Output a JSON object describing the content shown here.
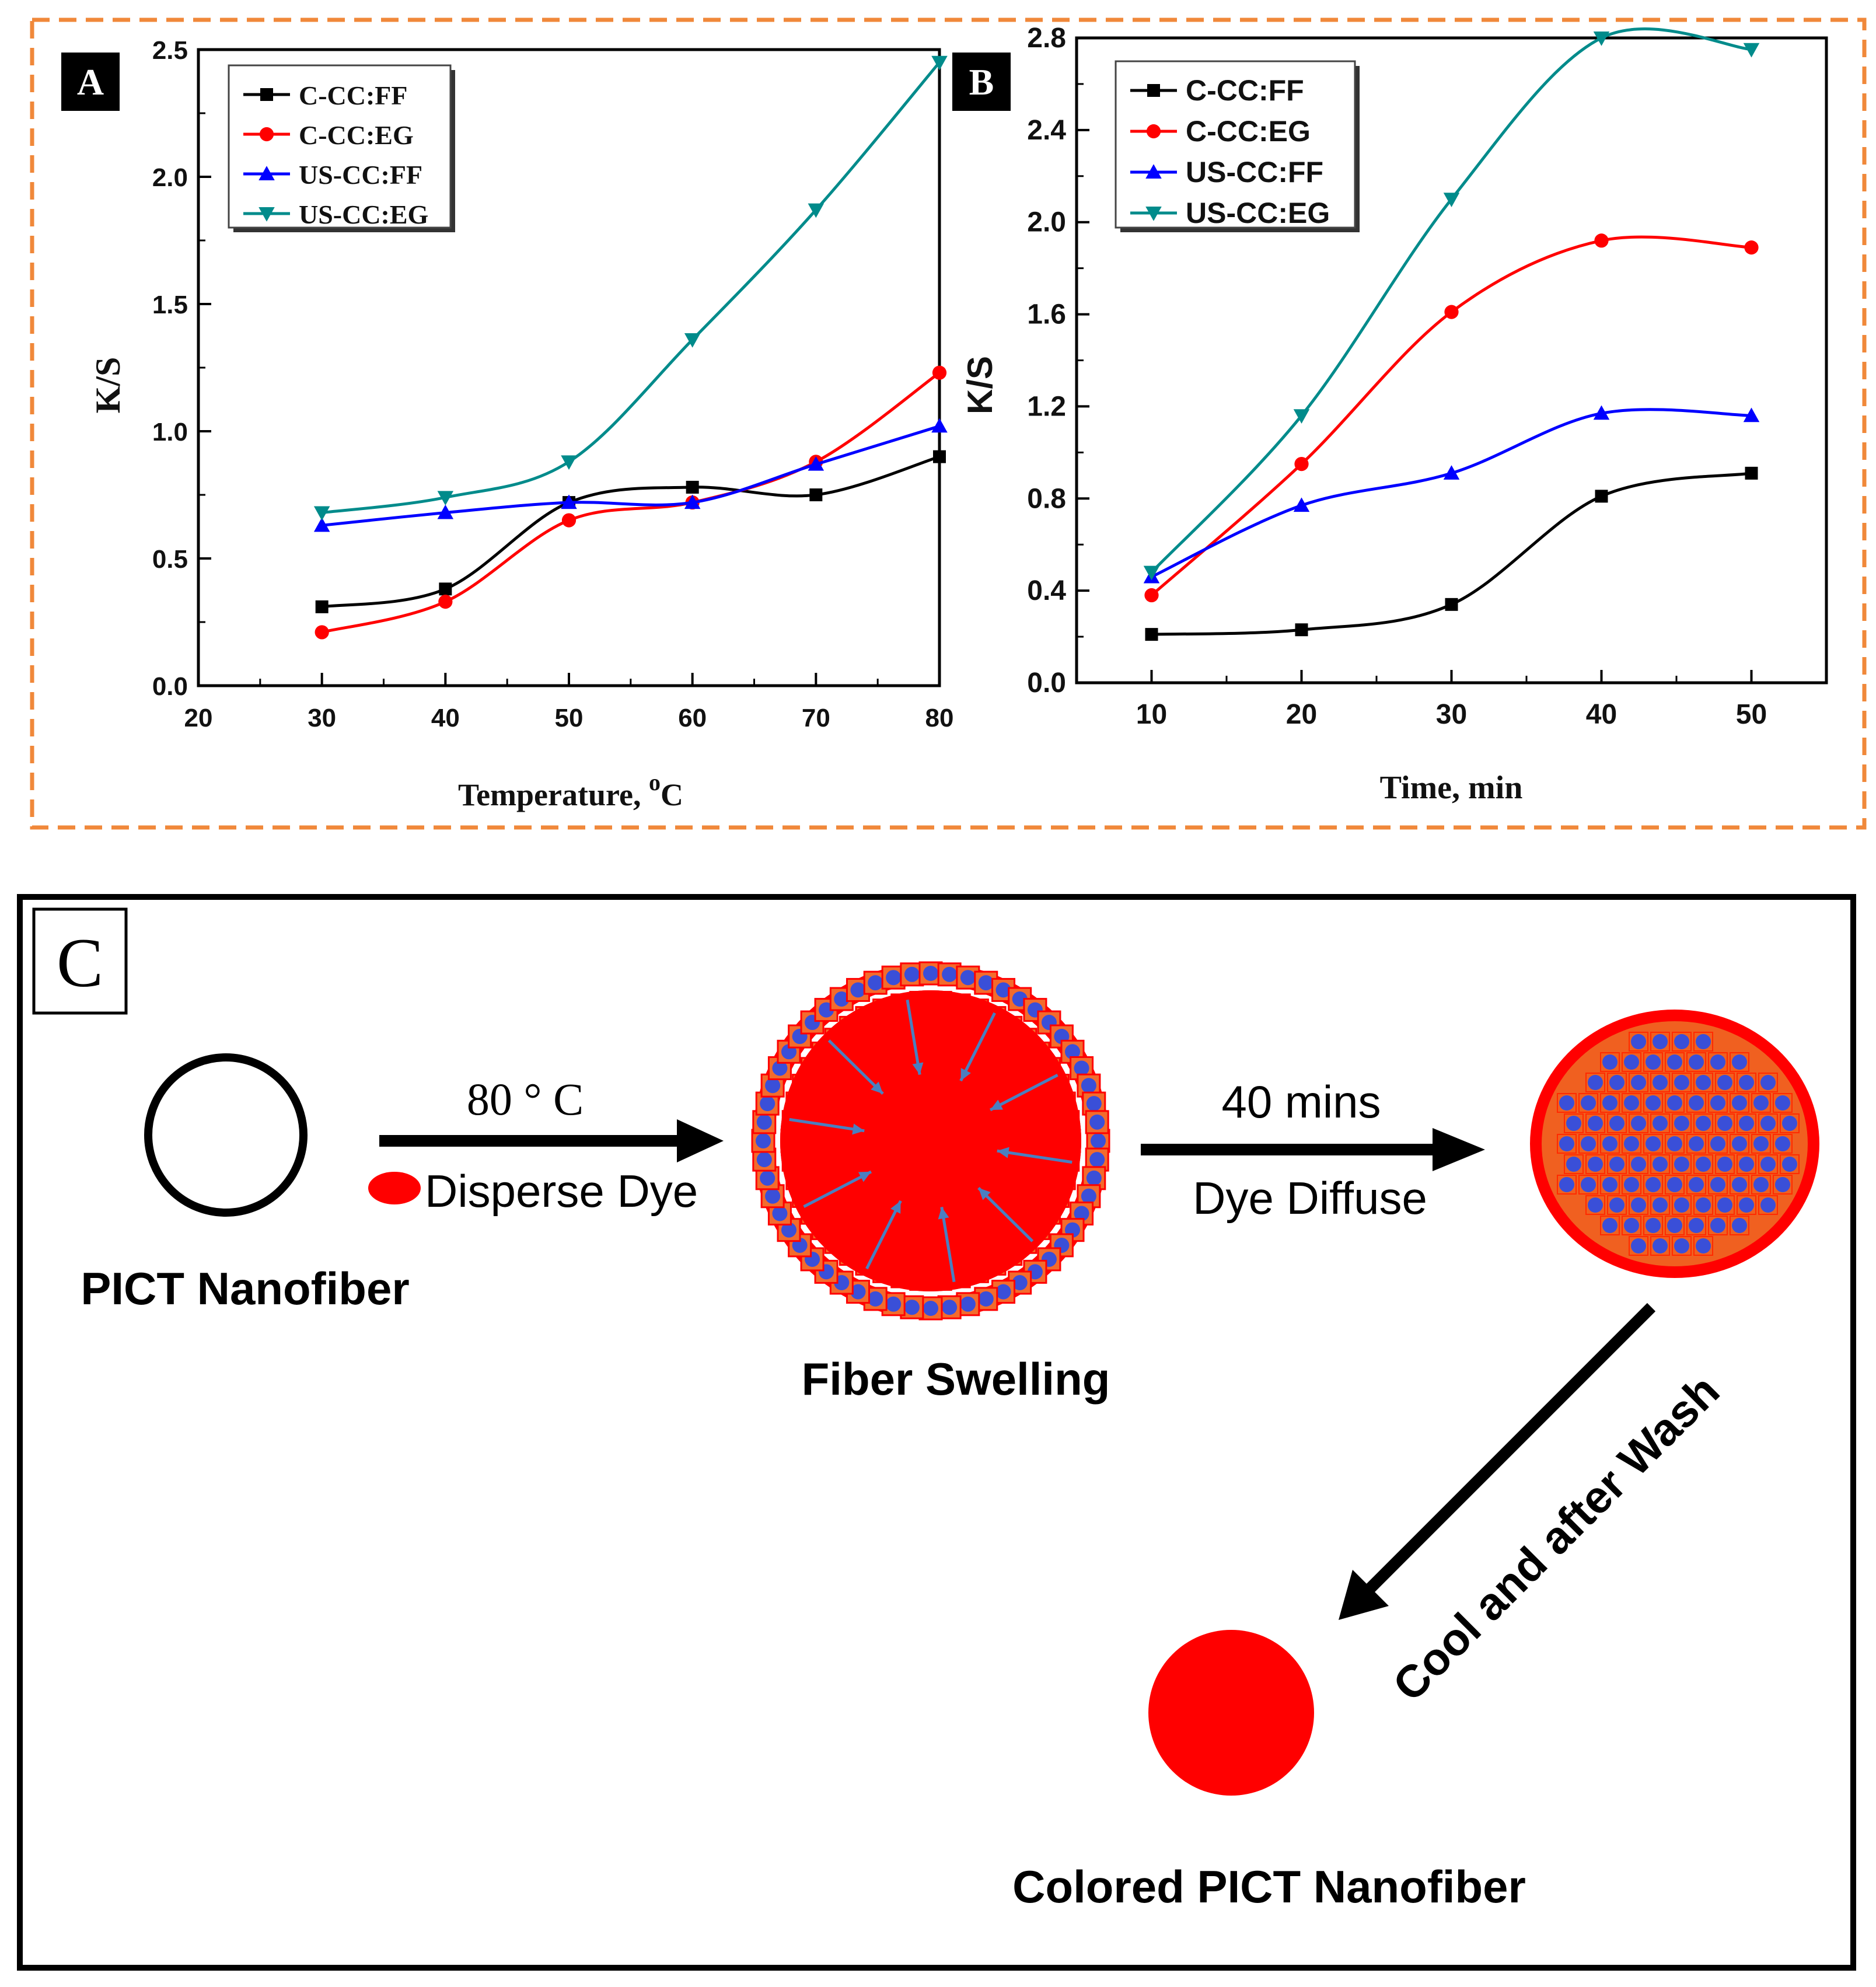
{
  "chart_data": [
    {
      "panel": "A",
      "type": "line",
      "title": "",
      "xlabel": "Temperature, ",
      "xlabel_superscript": "o",
      "xlabel_suffix": "C",
      "ylabel": "K/S",
      "xlim": [
        20,
        80
      ],
      "ylim": [
        0.0,
        2.5
      ],
      "xticks": [
        20,
        30,
        40,
        50,
        60,
        70,
        80
      ],
      "yticks": [
        0.0,
        0.5,
        1.0,
        1.5,
        2.0,
        2.5
      ],
      "ytick_labels": [
        "0.0",
        "0.5",
        "1.0",
        "1.5",
        "2.0",
        "2.5"
      ],
      "grid": false,
      "legend_position": "top-left",
      "x": [
        30,
        40,
        50,
        60,
        70,
        80
      ],
      "series": [
        {
          "name": "C-CC:FF",
          "color": "#000000",
          "marker": "square",
          "values": [
            0.31,
            0.38,
            0.72,
            0.78,
            0.75,
            0.9
          ]
        },
        {
          "name": "C-CC:EG",
          "color": "#ff0000",
          "marker": "circle",
          "values": [
            0.21,
            0.33,
            0.65,
            0.72,
            0.88,
            1.23
          ]
        },
        {
          "name": "US-CC:FF",
          "color": "#0000ff",
          "marker": "triangle-up",
          "values": [
            0.63,
            0.68,
            0.72,
            0.72,
            0.87,
            1.02
          ]
        },
        {
          "name": "US-CC:EG",
          "color": "#008b8b",
          "marker": "triangle-down",
          "values": [
            0.68,
            0.74,
            0.88,
            1.36,
            1.87,
            2.45
          ]
        }
      ]
    },
    {
      "panel": "B",
      "type": "line",
      "title": "",
      "xlabel": "Time, min",
      "ylabel": "K/S",
      "xlim": [
        5,
        55
      ],
      "ylim": [
        0.0,
        2.8
      ],
      "xticks": [
        10,
        20,
        30,
        40,
        50
      ],
      "yticks": [
        0.0,
        0.4,
        0.8,
        1.2,
        1.6,
        2.0,
        2.4,
        2.8
      ],
      "ytick_labels": [
        "0.0",
        "0.4",
        "0.8",
        "1.2",
        "1.6",
        "2.0",
        "2.4",
        "2.8"
      ],
      "grid": false,
      "legend_position": "top-left",
      "x": [
        10,
        20,
        30,
        40,
        50
      ],
      "series": [
        {
          "name": "C-CC:FF",
          "color": "#000000",
          "marker": "square",
          "values": [
            0.21,
            0.23,
            0.34,
            0.81,
            0.91
          ]
        },
        {
          "name": "C-CC:EG",
          "color": "#ff0000",
          "marker": "circle",
          "values": [
            0.38,
            0.95,
            1.61,
            1.92,
            1.89
          ]
        },
        {
          "name": "US-CC:FF",
          "color": "#0000ff",
          "marker": "triangle-up",
          "values": [
            0.46,
            0.77,
            0.91,
            1.17,
            1.16
          ]
        },
        {
          "name": "US-CC:EG",
          "color": "#008b8b",
          "marker": "triangle-down",
          "values": [
            0.48,
            1.16,
            2.1,
            2.8,
            2.75
          ]
        }
      ]
    }
  ],
  "diagram": {
    "panel_label": "C",
    "fiber_label": "PICT Nanofiber",
    "step1_top": "80 ° C",
    "step1_bottom": "Disperse Dye",
    "swelling_label": "Fiber Swelling",
    "step2_top": "40 mins",
    "step2_bottom": "Dye Diffuse",
    "step3": "Cool and after Wash",
    "colored_label": "Colored PICT Nanofiber"
  },
  "colors": {
    "frame_orange": "#f0883a",
    "dye_red": "#ff0000",
    "dye_blue": "#3a4fd8",
    "arrow_blue": "#4a7fc0"
  }
}
